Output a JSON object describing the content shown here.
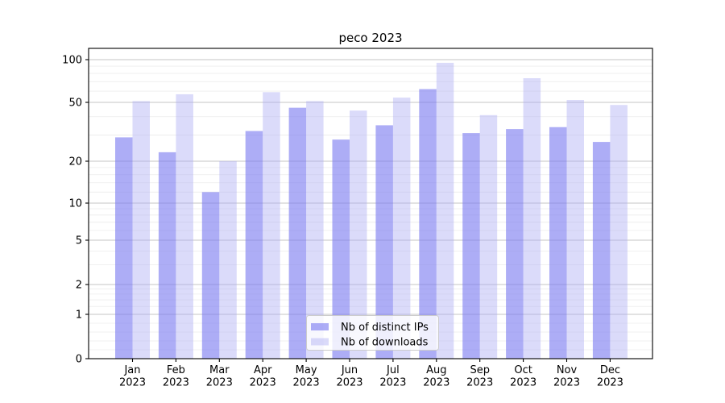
{
  "chart_data": {
    "type": "bar",
    "title": "peco 2023",
    "categories": [
      "Jan 2023",
      "Feb 2023",
      "Mar 2023",
      "Apr 2023",
      "May 2023",
      "Jun 2023",
      "Jul 2023",
      "Aug 2023",
      "Sep 2023",
      "Oct 2023",
      "Nov 2023",
      "Dec 2023"
    ],
    "series": [
      {
        "name": "Nb of distinct IPs",
        "fill": "#7a7af0",
        "fill_opacity": 0.62,
        "values": [
          29,
          23,
          12,
          32,
          46,
          28,
          35,
          62,
          31,
          33,
          34,
          27
        ]
      },
      {
        "name": "Nb of downloads",
        "fill": "#afaff4",
        "fill_opacity": 0.45,
        "values": [
          51,
          57,
          20,
          59,
          51,
          44,
          54,
          95,
          41,
          74,
          52,
          48
        ]
      }
    ],
    "y_axis": {
      "ticks": [
        0,
        1,
        2,
        5,
        10,
        20,
        50,
        100
      ],
      "scale": "log-like (compressed near zero)",
      "ylim": [
        0,
        120
      ]
    },
    "x_axis": {
      "tick_label_lines": 2
    },
    "grid": {
      "major": true,
      "minor": true,
      "major_color": "#c4c4c4",
      "minor_color": "#ececec"
    },
    "legend": {
      "position": "inside lower-center",
      "frame_color": "#cccccc",
      "frame_fill": "#ffffff"
    },
    "colors": {
      "spine": "#000000",
      "text": "#000000",
      "background": "#ffffff"
    }
  }
}
